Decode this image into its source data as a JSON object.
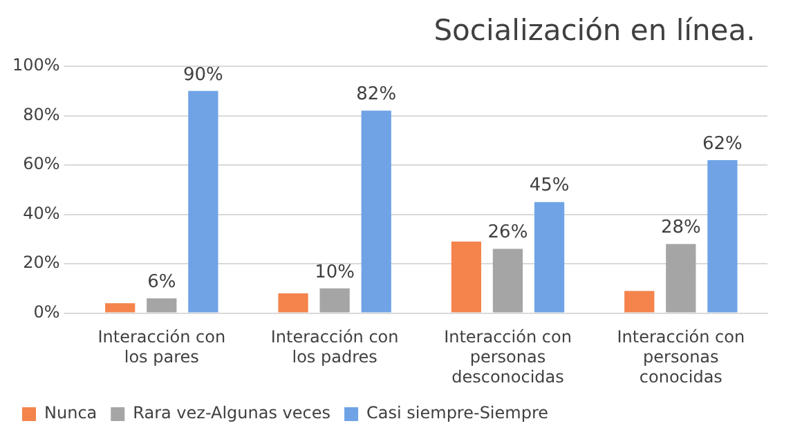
{
  "chart_data": {
    "type": "bar",
    "title": "Socialización en línea.",
    "categories": [
      "Interacción con los pares",
      "Interacción con los padres",
      "Interacción con personas desconocidas",
      "Interacción con personas conocidas"
    ],
    "series": [
      {
        "name": "Nunca",
        "color": "#f4844c",
        "values": [
          4,
          8,
          29,
          9
        ]
      },
      {
        "name": "Rara vez-Algunas veces",
        "color": "#a5a5a5",
        "values": [
          6,
          10,
          26,
          28
        ],
        "value_labels": [
          "6%",
          "10%",
          "26%",
          "28%"
        ]
      },
      {
        "name": "Casi siempre-Siempre",
        "color": "#6fa3e6",
        "values": [
          90,
          82,
          45,
          62
        ],
        "value_labels": [
          "90%",
          "82%",
          "45%",
          "62%"
        ]
      }
    ],
    "ylim": [
      0,
      100
    ],
    "yticks": [
      {
        "value": 0,
        "label": "0%"
      },
      {
        "value": 20,
        "label": "20%"
      },
      {
        "value": 40,
        "label": "40%"
      },
      {
        "value": 60,
        "label": "60%"
      },
      {
        "value": 80,
        "label": "80%"
      },
      {
        "value": 100,
        "label": "100%"
      }
    ],
    "grid": "y",
    "legend": "bottom left"
  }
}
